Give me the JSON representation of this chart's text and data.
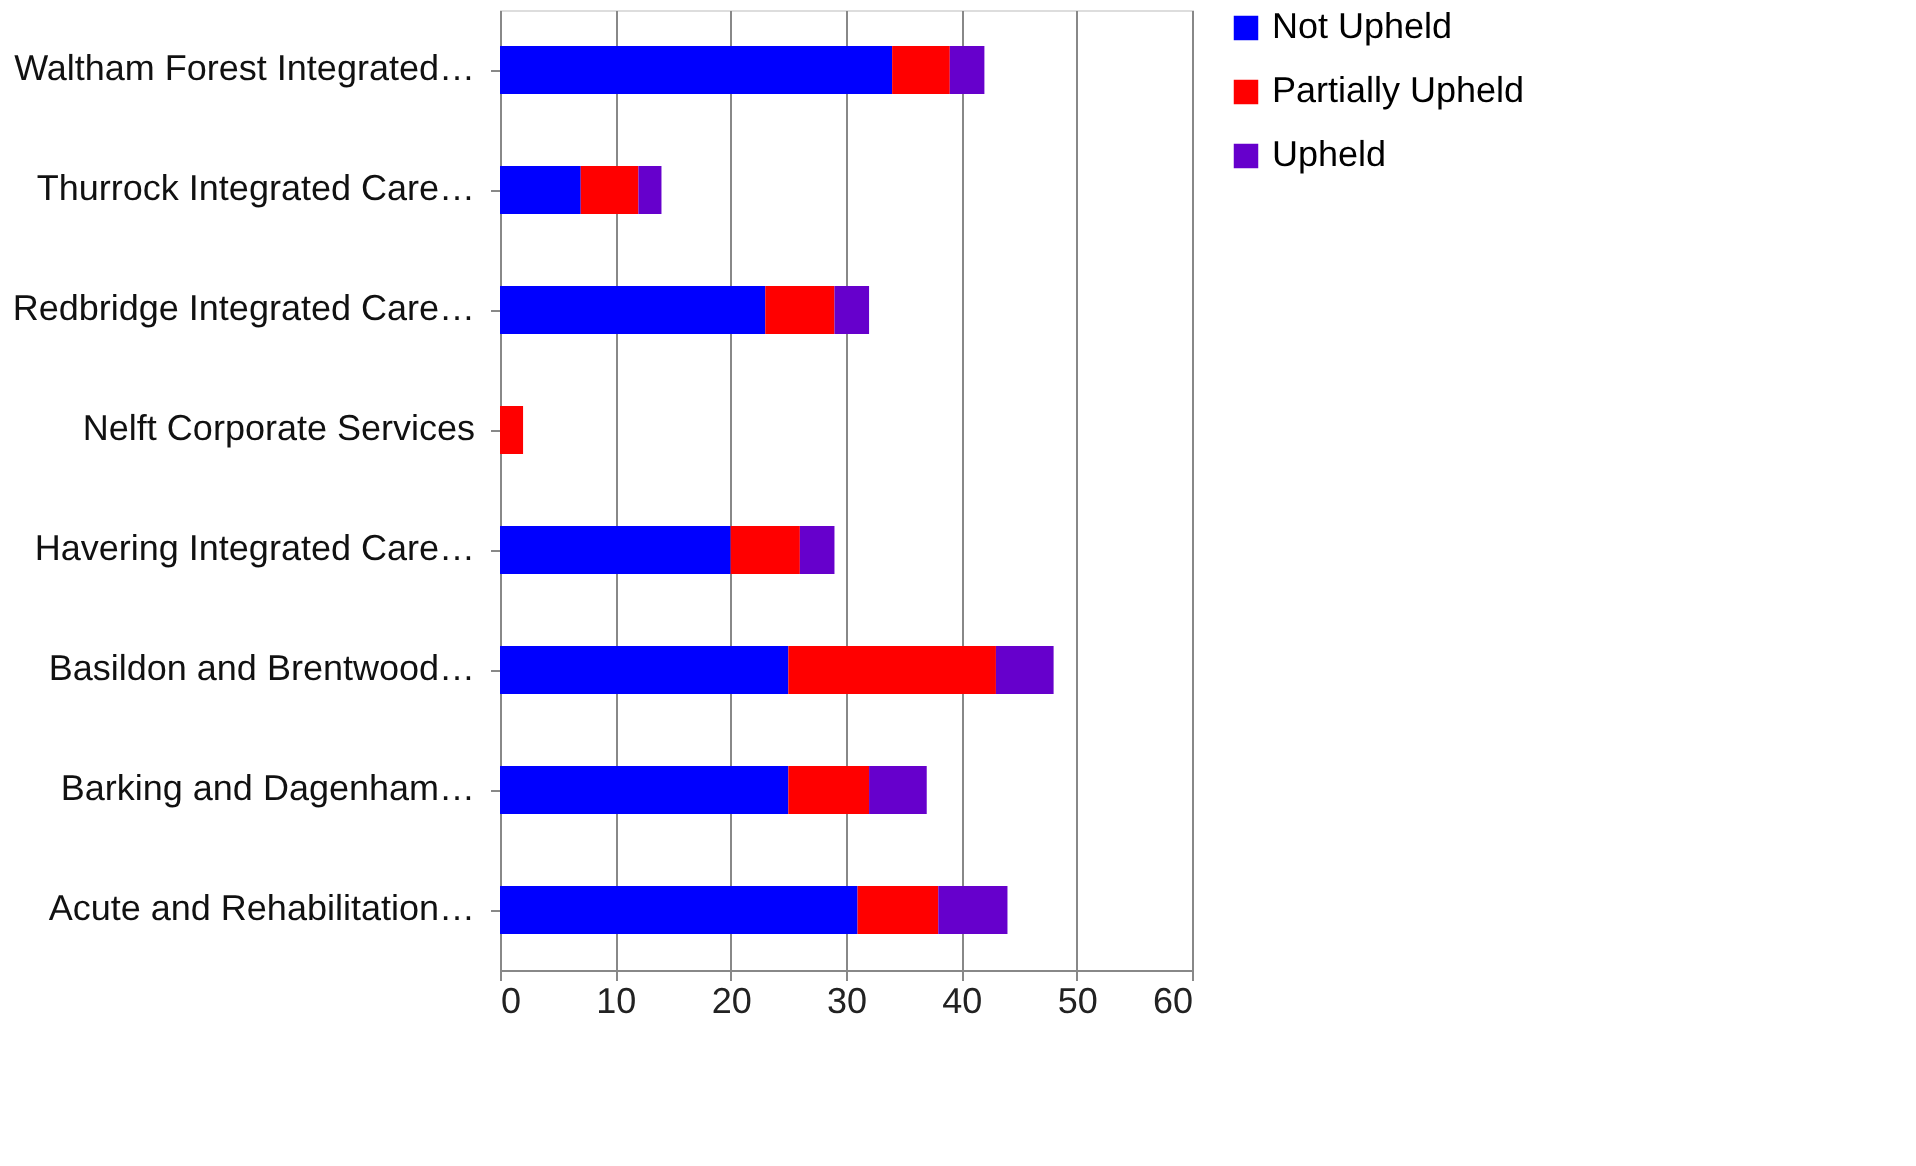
{
  "chart_data": {
    "type": "bar",
    "orientation": "horizontal",
    "stacked": true,
    "categories": [
      "Waltham Forest Integrated…",
      "Thurrock Integrated Care…",
      "Redbridge Integrated Care…",
      "Nelft Corporate Services",
      "Havering Integrated Care…",
      "Basildon and Brentwood…",
      "Barking and Dagenham…",
      "Acute and Rehabilitation…"
    ],
    "series": [
      {
        "name": "Not Upheld",
        "color": "#0000ff",
        "values": [
          34,
          7,
          23,
          0,
          20,
          25,
          25,
          31
        ]
      },
      {
        "name": "Partially Upheld",
        "color": "#ff0000",
        "values": [
          5,
          5,
          6,
          2,
          6,
          18,
          7,
          7
        ]
      },
      {
        "name": "Upheld",
        "color": "#6600cc",
        "values": [
          3,
          2,
          3,
          0,
          3,
          5,
          5,
          6
        ]
      }
    ],
    "xlim": [
      0,
      60
    ],
    "xticks": [
      0,
      10,
      20,
      30,
      40,
      50,
      60
    ],
    "grid": "x",
    "legend": "right"
  }
}
